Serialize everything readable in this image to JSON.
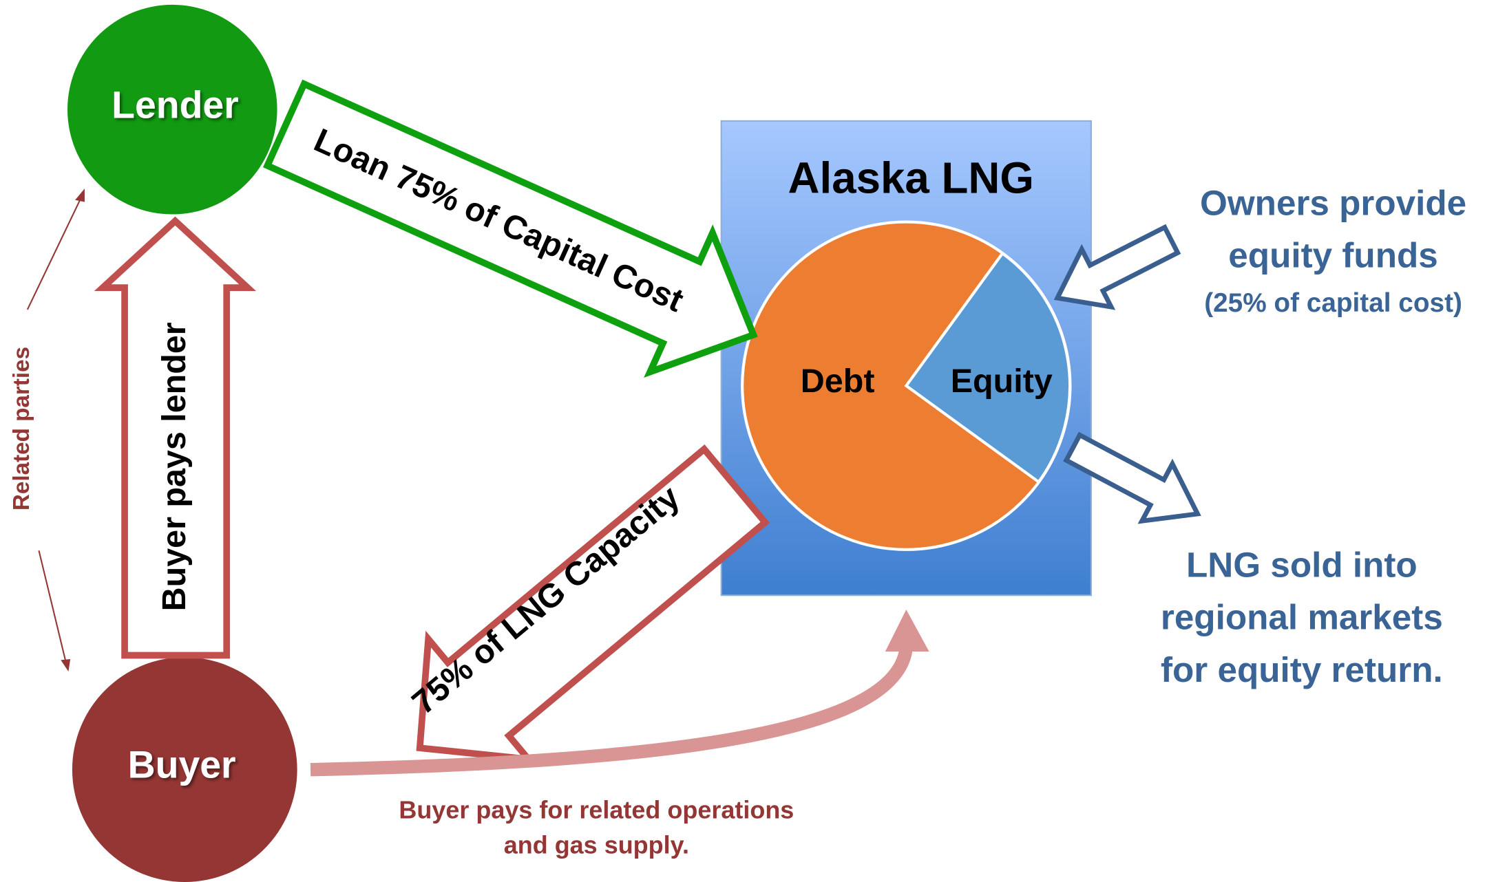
{
  "nodes": {
    "lender": "Lender",
    "buyer": "Buyer",
    "project": "Alaska LNG"
  },
  "pie_labels": [
    "Debt",
    "Equity"
  ],
  "arrows": {
    "loan": "Loan 75% of Capital Cost",
    "buyer_pays_lender": "Buyer pays lender",
    "capacity": "75% of LNG Capacity"
  },
  "notes": {
    "owners": [
      "Owners provide",
      "equity funds",
      "(25% of capital cost)"
    ],
    "lng_sold": [
      "LNG sold into",
      "regional markets",
      "for equity return."
    ],
    "operations": [
      "Buyer pays for related operations",
      "and gas supply."
    ]
  },
  "related": "Related parties"
}
